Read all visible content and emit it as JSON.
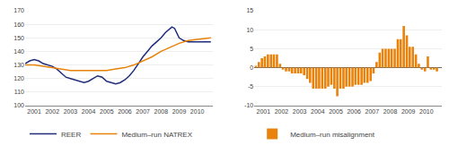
{
  "chart_data": [
    {
      "type": "line",
      "series": [
        {
          "name": "REER",
          "color": "#1f2d7b",
          "x": [
            2000.5,
            2000.75,
            2001.0,
            2001.25,
            2001.5,
            2001.75,
            2002.0,
            2002.25,
            2002.5,
            2002.75,
            2003.0,
            2003.25,
            2003.5,
            2003.75,
            2004.0,
            2004.25,
            2004.5,
            2004.75,
            2005.0,
            2005.25,
            2005.5,
            2005.75,
            2006.0,
            2006.25,
            2006.5,
            2006.75,
            2007.0,
            2007.25,
            2007.5,
            2007.75,
            2008.0,
            2008.25,
            2008.5,
            2008.6,
            2008.75,
            2009.0,
            2009.25,
            2009.5,
            2009.75,
            2010.0,
            2010.25,
            2010.5,
            2010.75
          ],
          "values": [
            131,
            133,
            134,
            133,
            131,
            130,
            129,
            127,
            124,
            121,
            120,
            119,
            118,
            117,
            118,
            120,
            122,
            121,
            118,
            117,
            116,
            117,
            119,
            122,
            126,
            131,
            136,
            140,
            144,
            147,
            150,
            154,
            157,
            158,
            157,
            150,
            148,
            147,
            147,
            147,
            147,
            147,
            147
          ]
        },
        {
          "name": "Medium–run NATREX",
          "color": "#e8820a",
          "x": [
            2000.5,
            2001.0,
            2001.5,
            2002.0,
            2002.5,
            2003.0,
            2003.5,
            2004.0,
            2004.5,
            2005.0,
            2005.5,
            2006.0,
            2006.5,
            2007.0,
            2007.5,
            2008.0,
            2008.5,
            2009.0,
            2009.5,
            2010.0,
            2010.5,
            2010.75
          ],
          "values": [
            130,
            130,
            129,
            128,
            127,
            126,
            126,
            126,
            126,
            126,
            127,
            128,
            130,
            133,
            136,
            140,
            143,
            146,
            148,
            149,
            150,
            150
          ]
        }
      ],
      "xlim": [
        2000.5,
        2010.85
      ],
      "ylim": [
        100,
        170
      ],
      "xticks": [
        2001,
        2002,
        2003,
        2004,
        2005,
        2006,
        2007,
        2008,
        2009,
        2010
      ],
      "yticks": [
        100,
        110,
        120,
        130,
        140,
        150,
        160,
        170
      ],
      "grid": true,
      "legend": "bottom"
    },
    {
      "type": "bar",
      "x": [
        2000.58,
        2000.75,
        2000.92,
        2001.08,
        2001.25,
        2001.42,
        2001.58,
        2001.75,
        2001.92,
        2002.08,
        2002.25,
        2002.42,
        2002.58,
        2002.75,
        2002.92,
        2003.08,
        2003.25,
        2003.42,
        2003.58,
        2003.75,
        2003.92,
        2004.08,
        2004.25,
        2004.42,
        2004.58,
        2004.75,
        2004.92,
        2005.08,
        2005.25,
        2005.42,
        2005.58,
        2005.75,
        2005.92,
        2006.08,
        2006.25,
        2006.42,
        2006.58,
        2006.75,
        2006.92,
        2007.08,
        2007.25,
        2007.42,
        2007.58,
        2007.75,
        2007.92,
        2008.08,
        2008.25,
        2008.42,
        2008.58,
        2008.75,
        2008.92,
        2009.08,
        2009.25,
        2009.42,
        2009.58,
        2009.75,
        2009.92,
        2010.08,
        2010.25,
        2010.42,
        2010.58
      ],
      "series": [
        {
          "name": "Medium–run misalignment",
          "color": "#e8820a",
          "values": [
            0.5,
            1.5,
            2.5,
            3.0,
            3.5,
            3.5,
            3.5,
            3.5,
            1.0,
            -0.5,
            -1.0,
            -1.0,
            -1.5,
            -1.5,
            -1.5,
            -1.5,
            -2.0,
            -3.0,
            -4.0,
            -5.5,
            -5.5,
            -5.5,
            -5.5,
            -5.5,
            -5.0,
            -4.5,
            -5.5,
            -7.5,
            -5.5,
            -5.5,
            -5.0,
            -5.0,
            -5.0,
            -4.5,
            -4.5,
            -4.5,
            -4.0,
            -4.0,
            -3.5,
            -1.5,
            1.5,
            4.0,
            5.0,
            5.0,
            5.0,
            5.0,
            5.0,
            7.5,
            7.5,
            11.0,
            8.5,
            5.5,
            5.5,
            3.5,
            1.0,
            -0.5,
            -1.0,
            3.0,
            -0.5,
            -0.5,
            -1.0
          ]
        }
      ],
      "xlim": [
        2000.5,
        2010.85
      ],
      "ylim": [
        -10,
        15
      ],
      "xticks": [
        2001,
        2002,
        2003,
        2004,
        2005,
        2006,
        2007,
        2008,
        2009,
        2010
      ],
      "yticks": [
        -10,
        -5,
        0,
        5,
        10,
        15
      ],
      "grid": true,
      "legend": "bottom"
    }
  ]
}
